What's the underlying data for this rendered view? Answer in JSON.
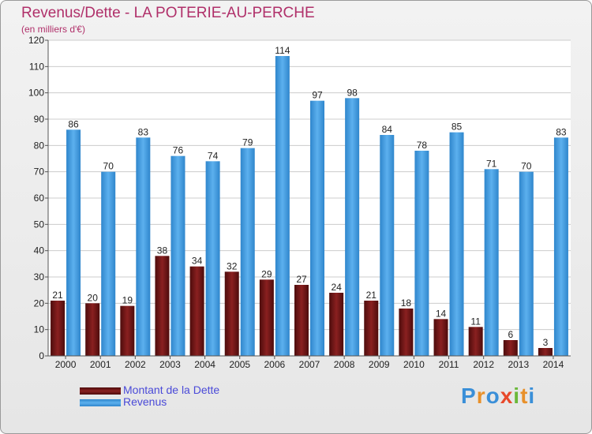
{
  "title": "Revenus/Dette - LA POTERIE-AU-PERCHE",
  "subtitle": "(en milliers d'€)",
  "logo": "Proxiti",
  "colors": {
    "title": "#b0306a",
    "dette": "#7a1a1a",
    "revenus": "#4aa3e6",
    "legend_text": "#4a4ad8"
  },
  "chart_data": {
    "type": "bar",
    "categories": [
      "2000",
      "2001",
      "2002",
      "2003",
      "2004",
      "2005",
      "2006",
      "2007",
      "2008",
      "2009",
      "2010",
      "2011",
      "2012",
      "2013",
      "2014"
    ],
    "series": [
      {
        "name": "Montant de la Dette",
        "values": [
          21,
          20,
          19,
          38,
          34,
          32,
          29,
          27,
          24,
          21,
          18,
          14,
          11,
          6,
          3
        ]
      },
      {
        "name": "Revenus",
        "values": [
          86,
          70,
          83,
          76,
          74,
          79,
          114,
          97,
          98,
          84,
          78,
          85,
          71,
          70,
          83
        ]
      }
    ],
    "ylim": [
      0,
      120
    ],
    "yticks": [
      0,
      10,
      20,
      30,
      40,
      50,
      60,
      70,
      80,
      90,
      100,
      110,
      120
    ],
    "grid": true,
    "legend_position": "bottom-left"
  }
}
